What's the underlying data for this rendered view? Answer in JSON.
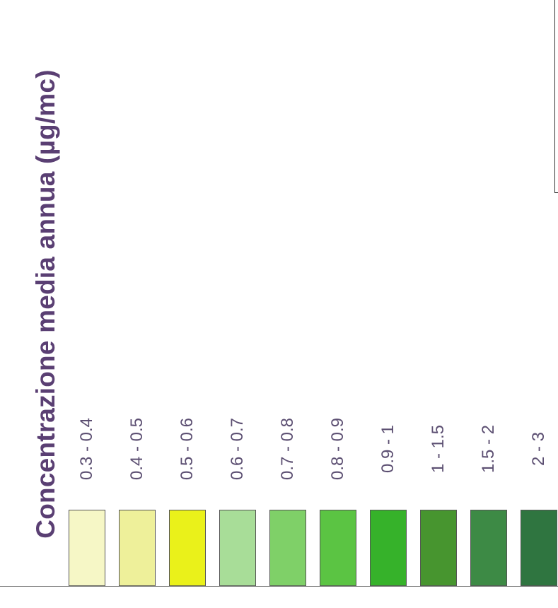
{
  "legend": {
    "title": "Concentrazione media annua (µg/mc)",
    "items": [
      {
        "label": "0.3 - 0.4",
        "color": "#f6f7c6"
      },
      {
        "label": "0.4 - 0.5",
        "color": "#eef09a"
      },
      {
        "label": "0.5 - 0.6",
        "color": "#eaf11a"
      },
      {
        "label": "0.6 - 0.7",
        "color": "#a8dd98"
      },
      {
        "label": "0.7 - 0.8",
        "color": "#7fd068"
      },
      {
        "label": "0.8 - 0.9",
        "color": "#5bc443"
      },
      {
        "label": "0.9 - 1",
        "color": "#36b22a"
      },
      {
        "label": "1 - 1.5",
        "color": "#47952f"
      },
      {
        "label": "1.5 - 2",
        "color": "#3d8a45"
      },
      {
        "label": "2 - 3",
        "color": "#2f7540"
      }
    ]
  }
}
